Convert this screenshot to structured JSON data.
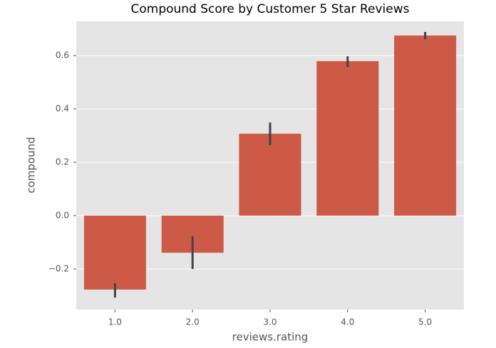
{
  "chart_data": {
    "type": "bar",
    "title": "Compound Score by Customer 5 Star Reviews",
    "x_label": "reviews.rating",
    "y_label": "compound",
    "categories": [
      "1.0",
      "2.0",
      "3.0",
      "4.0",
      "5.0"
    ],
    "values": [
      -0.277,
      -0.139,
      0.307,
      0.579,
      0.675
    ],
    "ci_low": [
      -0.307,
      -0.2,
      0.264,
      0.557,
      0.661
    ],
    "ci_high": [
      -0.253,
      -0.077,
      0.349,
      0.597,
      0.688
    ],
    "color": "#cd5a47",
    "error_color": "#424242",
    "ylim": [
      -0.352,
      0.728
    ],
    "yticks": [
      {
        "value": -0.2,
        "label": "−0.2"
      },
      {
        "value": 0,
        "label": "0.0"
      },
      0.2,
      0.4,
      0.6
    ],
    "grid": true
  }
}
